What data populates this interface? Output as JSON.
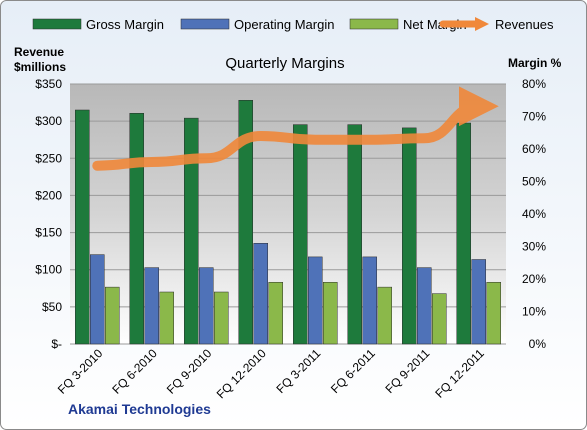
{
  "chart_data": {
    "type": "bar",
    "title": "Quarterly Margins",
    "footer": "Akamai Technologies",
    "categories": [
      "FQ 3-2010",
      "FQ 6-2010",
      "FQ 9-2010",
      "FQ 12-2010",
      "FQ 3-2011",
      "FQ 6-2011",
      "FQ 9-2011",
      "FQ 12-2011"
    ],
    "y_left": {
      "label_line1": "Revenue",
      "label_line2": "$millions",
      "range": [
        0,
        350
      ],
      "ticks": [
        "$-",
        "$50",
        "$100",
        "$150",
        "$200",
        "$250",
        "$300",
        "$350"
      ]
    },
    "y_right": {
      "label": "Margin %",
      "range": [
        0,
        80
      ],
      "ticks": [
        "0%",
        "10%",
        "20%",
        "30%",
        "40%",
        "50%",
        "60%",
        "70%",
        "80%"
      ]
    },
    "series": [
      {
        "name": "Gross Margin",
        "axis": "right",
        "type": "bar",
        "color": "#1E7A3C",
        "values": [
          72,
          71,
          69.5,
          75,
          67.5,
          67.5,
          66.5,
          68
        ]
      },
      {
        "name": "Operating Margin",
        "axis": "right",
        "type": "bar",
        "color": "#4F72B8",
        "values": [
          27.5,
          23.5,
          23.5,
          31,
          26.8,
          26.8,
          23.5,
          26
        ]
      },
      {
        "name": "Net Margin",
        "axis": "right",
        "type": "bar",
        "color": "#8BB84A",
        "values": [
          17.5,
          16,
          16,
          19,
          19,
          17.5,
          15.5,
          19
        ]
      },
      {
        "name": "Revenues",
        "axis": "left",
        "type": "line",
        "color": "#F0883A",
        "values": [
          240,
          245,
          250,
          280,
          275,
          275,
          277,
          320
        ]
      }
    ],
    "grid": true,
    "legend_position": "top"
  }
}
